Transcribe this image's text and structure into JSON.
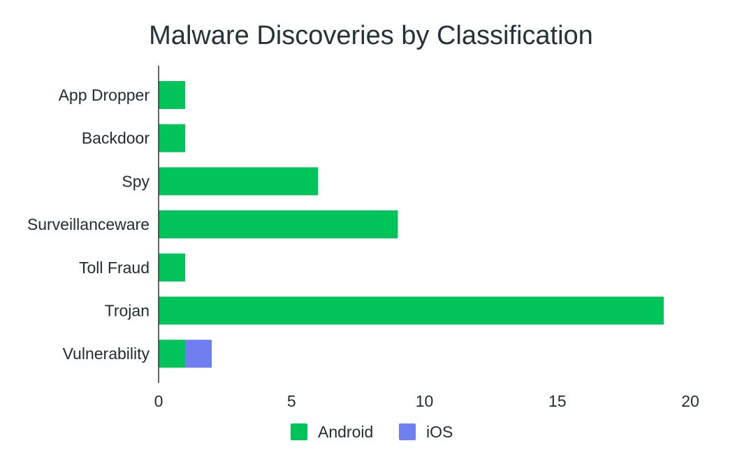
{
  "chart_data": {
    "type": "bar",
    "orientation": "horizontal",
    "stacked": true,
    "title": "Malware Discoveries by Classification",
    "categories": [
      "App Dropper",
      "Backdoor",
      "Spy",
      "Surveillanceware",
      "Toll Fraud",
      "Trojan",
      "Vulnerability"
    ],
    "series": [
      {
        "name": "Android",
        "color": "#00c45a",
        "values": [
          1,
          1,
          6,
          9,
          1,
          19,
          1
        ]
      },
      {
        "name": "iOS",
        "color": "#6f7ff0",
        "values": [
          0,
          0,
          0,
          0,
          0,
          0,
          1
        ]
      }
    ],
    "xlim": [
      0,
      20
    ],
    "xticks": [
      0,
      5,
      10,
      15,
      20
    ],
    "xlabel": "",
    "ylabel": "",
    "grid": false,
    "legend_position": "bottom"
  }
}
